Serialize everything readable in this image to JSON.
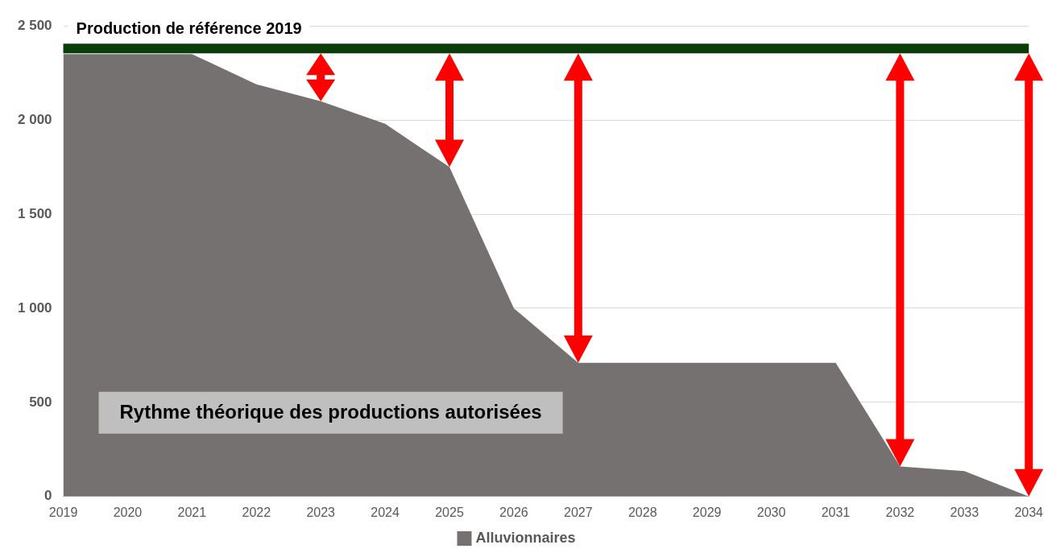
{
  "chart_data": {
    "type": "area",
    "categories": [
      "2019",
      "2020",
      "2021",
      "2022",
      "2023",
      "2024",
      "2025",
      "2026",
      "2027",
      "2028",
      "2029",
      "2030",
      "2031",
      "2032",
      "2033",
      "2034"
    ],
    "series": [
      {
        "name": "Alluvionnaires",
        "color": "#767171",
        "values": [
          2350,
          2350,
          2350,
          2190,
          2100,
          1980,
          1750,
          1000,
          710,
          710,
          710,
          710,
          710,
          160,
          135,
          0
        ]
      }
    ],
    "ylim": [
      0,
      2500
    ],
    "yticks": [
      0,
      {
        "value": 500,
        "label": "500"
      },
      {
        "value": 1000,
        "label": "1 000"
      },
      {
        "value": 1500,
        "label": "1 500"
      },
      {
        "value": 2000,
        "label": "2 000"
      },
      {
        "value": 2500,
        "label": "2 500"
      }
    ],
    "grid": "y",
    "legend": "bottom",
    "ref_lines": [
      {
        "axis": "y",
        "value": 2380,
        "label": "Production de référence 2019",
        "color": "#0b3d0b"
      }
    ],
    "annotations": [
      "Rythme théorique des productions autorisées"
    ]
  }
}
